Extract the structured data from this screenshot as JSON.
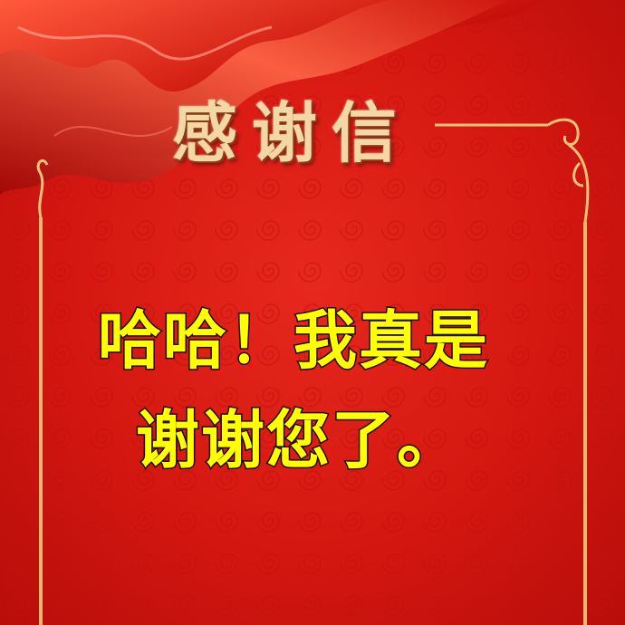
{
  "letter": {
    "heading": "感谢信",
    "message_lines": [
      "哈哈！我真是",
      "谢谢您了。"
    ]
  },
  "colors": {
    "background": "#d41710",
    "heading_gold": "#f3d7a4",
    "message_yellow": "#ffff00",
    "frame_gold": "#e8b870"
  },
  "icons": {
    "ribbon": "red-silk-ribbon-icon",
    "corner_ornament": "gold-scroll-ornament-icon"
  }
}
